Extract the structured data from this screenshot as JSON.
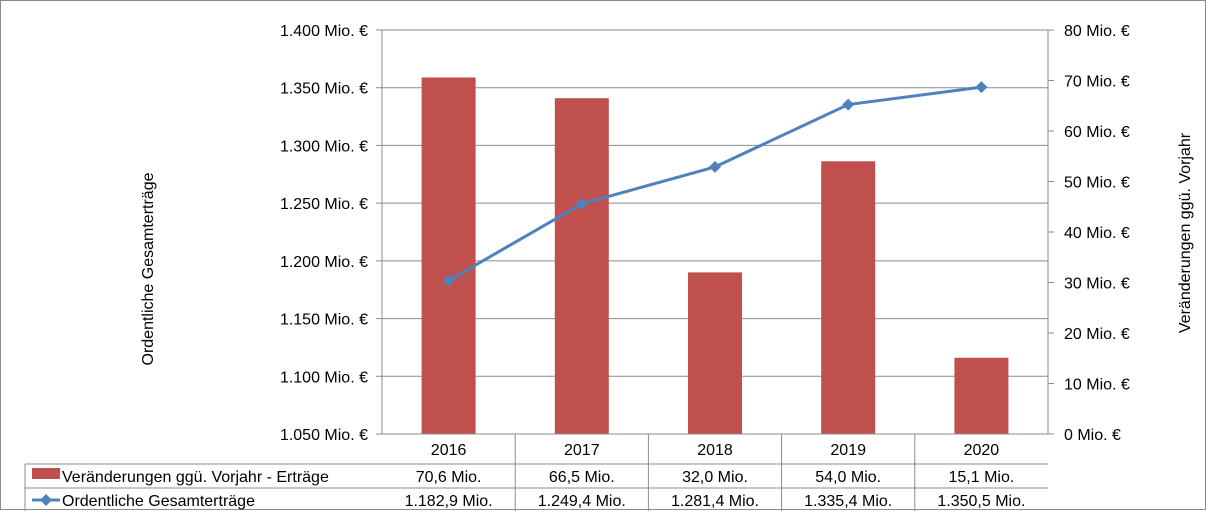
{
  "chart_data": {
    "type": "bar",
    "categories": [
      "2016",
      "2017",
      "2018",
      "2019",
      "2020"
    ],
    "series": [
      {
        "name": "Veränderungen ggü. Vorjahr - Erträge",
        "chart_type": "bar",
        "axis": "right",
        "values": [
          70.6,
          66.5,
          32.0,
          54.0,
          15.1
        ],
        "labels": [
          "70,6 Mio.",
          "66,5 Mio.",
          "32,0 Mio.",
          "54,0 Mio.",
          "15,1 Mio."
        ],
        "color": "#c0504d"
      },
      {
        "name": "Ordentliche Gesamterträge",
        "chart_type": "line",
        "axis": "left",
        "values": [
          1182.9,
          1249.4,
          1281.4,
          1335.4,
          1350.5
        ],
        "labels": [
          "1.182,9 Mio.",
          "1.249,4 Mio.",
          "1.281,4 Mio.",
          "1.335,4 Mio.",
          "1.350,5 Mio."
        ],
        "color": "#4f81bd"
      }
    ],
    "y_left": {
      "label": "Ordentliche Gesamterträge",
      "ylim": [
        1050,
        1400
      ],
      "ticks": [
        1050,
        1100,
        1150,
        1200,
        1250,
        1300,
        1350,
        1400
      ],
      "tick_labels": [
        "1.050 Mio. €",
        "1.100 Mio. €",
        "1.150 Mio. €",
        "1.200 Mio. €",
        "1.250 Mio. €",
        "1.300 Mio. €",
        "1.350 Mio. €",
        "1.400 Mio. €"
      ]
    },
    "y_right": {
      "label": "Veränderungen ggü. Vorjahr",
      "ylim": [
        0,
        80
      ],
      "ticks": [
        0,
        10,
        20,
        30,
        40,
        50,
        60,
        70,
        80
      ],
      "tick_labels": [
        "0 Mio. €",
        "10 Mio. €",
        "20 Mio. €",
        "30 Mio. €",
        "40 Mio. €",
        "50 Mio. €",
        "60 Mio. €",
        "70 Mio. €",
        "80 Mio. €"
      ]
    },
    "grid": true,
    "legend": "data-table"
  }
}
